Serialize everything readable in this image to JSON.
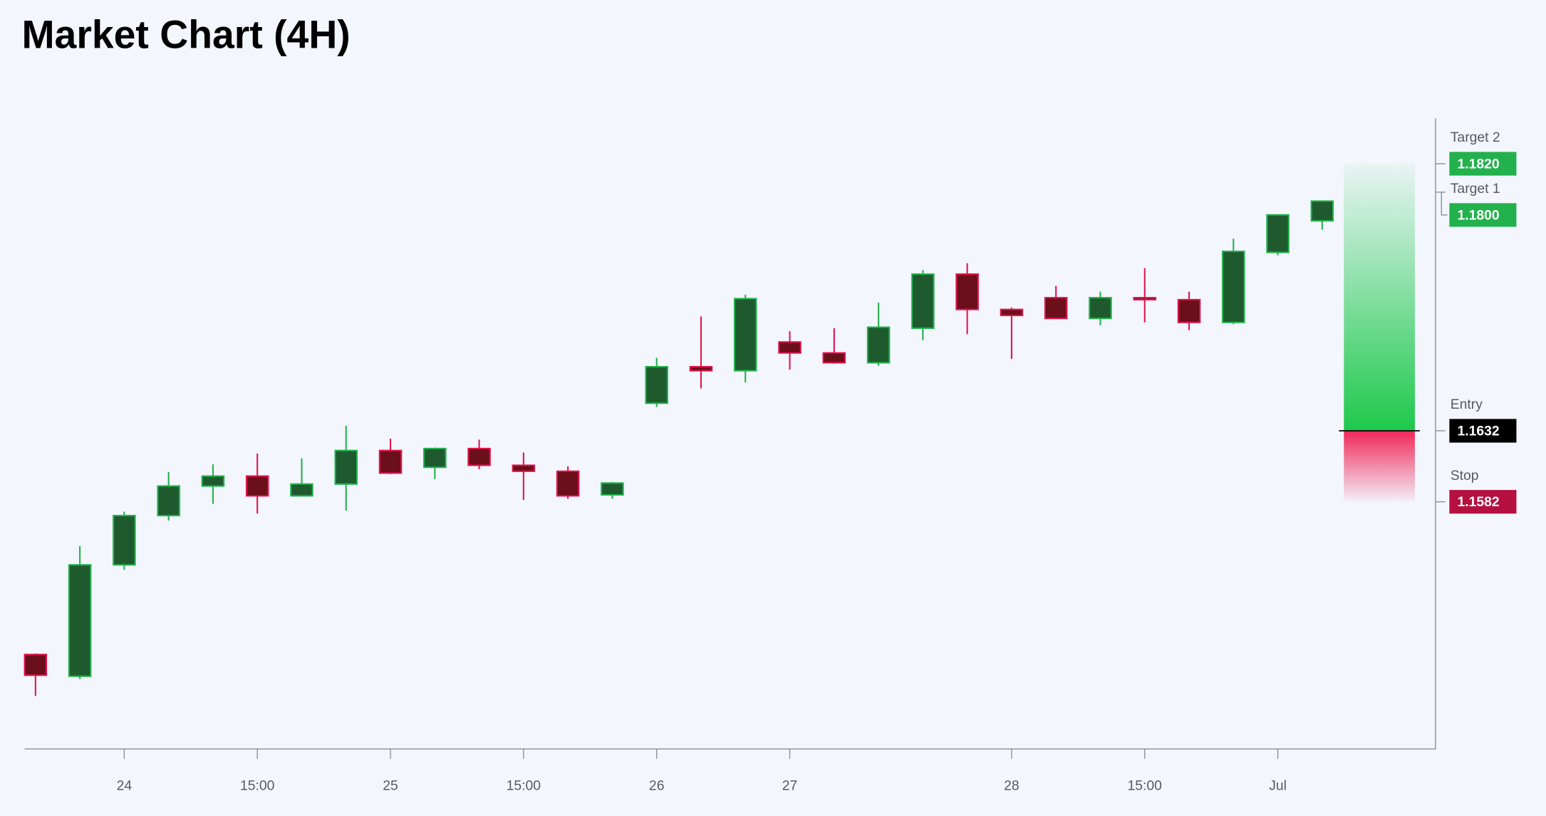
{
  "chart_data": {
    "type": "candlestick",
    "title": "Market Chart (4H)",
    "categories": [
      null,
      null,
      "24",
      null,
      null,
      "15:00",
      null,
      null,
      "25",
      null,
      null,
      "15:00",
      null,
      null,
      "26",
      null,
      null,
      "27",
      null,
      null,
      null,
      null,
      "28",
      null,
      null,
      "15:00",
      null,
      null,
      "Jul",
      null
    ],
    "open": [
      1.14745,
      1.14592,
      1.15376,
      1.15723,
      1.15931,
      1.16001,
      1.15862,
      1.15945,
      1.16181,
      1.16063,
      1.16195,
      1.16077,
      1.16035,
      1.15869,
      1.16514,
      1.16771,
      1.16743,
      1.16945,
      1.16868,
      1.16799,
      1.17042,
      1.17423,
      1.17174,
      1.17257,
      1.17111,
      1.17257,
      1.17243,
      1.17083,
      1.17576,
      1.17798
    ],
    "high": [
      1.14752,
      1.15508,
      1.15751,
      1.16029,
      1.16084,
      1.1616,
      1.16126,
      1.16355,
      1.16264,
      1.16202,
      1.16258,
      1.16167,
      1.1607,
      1.15959,
      1.16834,
      1.17125,
      1.17278,
      1.17021,
      1.17042,
      1.17222,
      1.17451,
      1.175,
      1.17188,
      1.1734,
      1.17299,
      1.17465,
      1.17299,
      1.17673,
      1.1784,
      1.17937
    ],
    "low": [
      1.14453,
      1.14571,
      1.15341,
      1.15688,
      1.15806,
      1.15737,
      1.15862,
      1.15758,
      1.16015,
      1.1598,
      1.16049,
      1.15834,
      1.15841,
      1.15841,
      1.16487,
      1.16618,
      1.1666,
      1.1675,
      1.16792,
      1.16778,
      1.16958,
      1.17,
      1.16827,
      1.17111,
      1.17063,
      1.17083,
      1.17028,
      1.1707,
      1.17555,
      1.17736
    ],
    "close": [
      1.14599,
      1.15376,
      1.15723,
      1.15931,
      1.16001,
      1.15862,
      1.15945,
      1.16181,
      1.16022,
      1.16195,
      1.16077,
      1.16035,
      1.15862,
      1.15952,
      1.16771,
      1.16743,
      1.1725,
      1.16868,
      1.16799,
      1.17049,
      1.17423,
      1.17174,
      1.17132,
      1.17111,
      1.17257,
      1.17243,
      1.17083,
      1.17583,
      1.1784,
      1.17937
    ],
    "up_color": "#22b14c",
    "up_fill": "#1f5a2f",
    "down_color": "#e0134d",
    "down_fill": "#6b0f1a",
    "ylim": [
      1.1408,
      1.1852
    ],
    "levels": [
      {
        "name": "Target 2",
        "value": 1.182,
        "label": "1.1820",
        "color": "#22b14c"
      },
      {
        "name": "Target 1",
        "value": 1.18,
        "label": "1.1800",
        "color": "#22b14c"
      },
      {
        "name": "Entry",
        "value": 1.1632,
        "label": "1.1632",
        "color": "#000000"
      },
      {
        "name": "Stop",
        "value": 1.1582,
        "label": "1.1582",
        "color": "#b5103f"
      }
    ]
  }
}
